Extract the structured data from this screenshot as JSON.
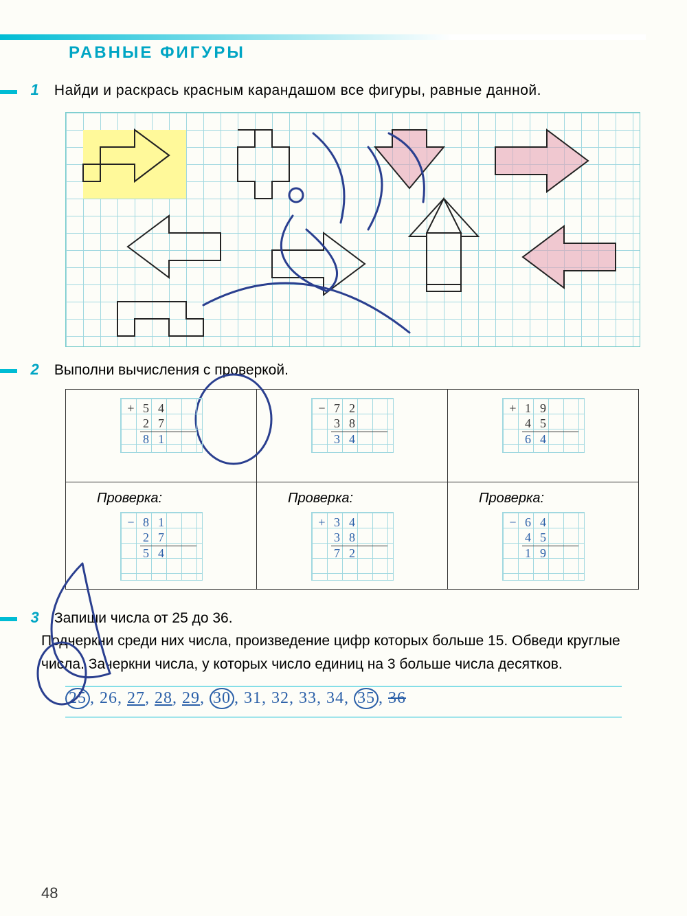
{
  "page_title": "РАВНЫЕ ФИГУРЫ",
  "page_number": "48",
  "task1": {
    "num": "1",
    "text": "Найди и раскрась красным карандашом все фигуры, равные данной."
  },
  "task2": {
    "num": "2",
    "text": "Выполни вычисления с проверкой.",
    "check_label": "Проверка:",
    "problems": [
      {
        "op": "+",
        "a": "54",
        "b": "27",
        "r": "81",
        "check_op": "−",
        "ca": "81",
        "cb": "27",
        "cr": "54"
      },
      {
        "op": "−",
        "a": "72",
        "b": "38",
        "r": "34",
        "check_op": "+",
        "ca": "34",
        "cb": "38",
        "cr": "72"
      },
      {
        "op": "+",
        "a": "19",
        "b": "45",
        "r": "64",
        "check_op": "−",
        "ca": "64",
        "cb": "45",
        "cr": "19"
      }
    ]
  },
  "task3": {
    "num": "3",
    "text": "Запиши числа от 25 до 36.\nПодчеркни среди них числа, произведение цифр которых больше 15. Обведи круглые числа. Зачеркни числа, у которых число единиц на 3 больше числа десятков.",
    "answer_parts": [
      {
        "v": "25",
        "circled": true
      },
      {
        "v": ", "
      },
      {
        "v": "26"
      },
      {
        "v": ", "
      },
      {
        "v": "27",
        "underlined": true
      },
      {
        "v": ", "
      },
      {
        "v": "28",
        "underlined": true
      },
      {
        "v": ", "
      },
      {
        "v": "29",
        "underlined": true
      },
      {
        "v": ", "
      },
      {
        "v": "30",
        "circled": true
      },
      {
        "v": ", "
      },
      {
        "v": "31"
      },
      {
        "v": ", "
      },
      {
        "v": "32"
      },
      {
        "v": ", "
      },
      {
        "v": "33"
      },
      {
        "v": ", "
      },
      {
        "v": "34"
      },
      {
        "v": ", "
      },
      {
        "v": "35",
        "circled": true
      },
      {
        "v": ", "
      },
      {
        "v": "36",
        "struck": true
      }
    ]
  },
  "grid": {
    "cell": 25
  },
  "colors": {
    "accent": "#00bcd4",
    "pen": "#2a5fa8",
    "yellow": "#fff99a",
    "pink": "#e8a5b5"
  }
}
